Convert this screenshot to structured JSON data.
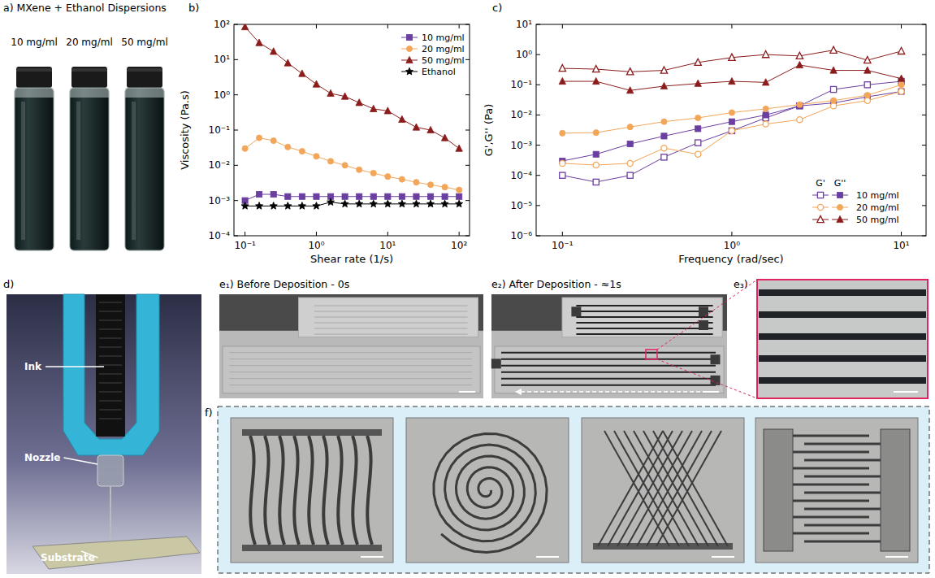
{
  "panels": {
    "a": {
      "label": "a) MXene + Ethanol Dispersions",
      "vials": [
        "10 mg/ml",
        "20 mg/ml",
        "50 mg/ml"
      ]
    },
    "b": {
      "label": "b)"
    },
    "c": {
      "label": "c)"
    },
    "d": {
      "label": "d)",
      "callouts": [
        "Ink",
        "Nozzle",
        "Substrate"
      ]
    },
    "e1": {
      "label": "e₁) Before Deposition - 0s"
    },
    "e2": {
      "label": "e₂) After Deposition - ≈1s"
    },
    "e3": {
      "label": "e₃)"
    },
    "f": {
      "label": "f)"
    }
  },
  "chart_data": [
    {
      "type": "line",
      "x_label": "Shear rate (1/s)",
      "y_label": "Viscosity (Pa.s)",
      "log": true,
      "legend": "top-right",
      "xlim": [
        0.07,
        140
      ],
      "ylim": [
        0.0001,
        100
      ],
      "xticks": [
        {
          "value": 0.1,
          "label": "10⁻¹"
        },
        {
          "value": 1,
          "label": "10⁰"
        },
        {
          "value": 10,
          "label": "10¹"
        },
        {
          "value": 100,
          "label": "10²"
        }
      ],
      "yticks": [
        {
          "value": 0.0001,
          "label": "10⁻⁴"
        },
        {
          "value": 0.001,
          "label": "10⁻³"
        },
        {
          "value": 0.01,
          "label": "10⁻²"
        },
        {
          "value": 0.1,
          "label": "10⁻¹"
        },
        {
          "value": 1,
          "label": "10⁰"
        },
        {
          "value": 10,
          "label": "10¹"
        },
        {
          "value": 100,
          "label": "10²"
        }
      ],
      "x": [
        0.1,
        0.158,
        0.251,
        0.398,
        0.631,
        1,
        1.585,
        2.512,
        3.981,
        6.31,
        10,
        15.85,
        25.12,
        39.81,
        63.1,
        100
      ],
      "series": [
        {
          "name": "10 mg/ml",
          "color": "#6b3fa0",
          "marker": "square",
          "values": [
            0.001,
            0.0015,
            0.0015,
            0.0013,
            0.0013,
            0.0013,
            0.0013,
            0.0013,
            0.0013,
            0.0013,
            0.0013,
            0.0013,
            0.0013,
            0.0013,
            0.0013,
            0.0013
          ]
        },
        {
          "name": "20 mg/ml",
          "color": "#f2a65a",
          "marker": "circle",
          "values": [
            0.03,
            0.06,
            0.05,
            0.033,
            0.025,
            0.018,
            0.013,
            0.01,
            0.0075,
            0.006,
            0.0048,
            0.004,
            0.0033,
            0.0028,
            0.0024,
            0.002
          ]
        },
        {
          "name": "50 mg/ml",
          "color": "#8b1c1c",
          "marker": "triangle",
          "values": [
            85,
            30,
            17,
            8,
            4,
            2,
            1.1,
            0.9,
            0.6,
            0.4,
            0.35,
            0.2,
            0.12,
            0.1,
            0.06,
            0.03
          ]
        },
        {
          "name": "Ethanol",
          "color": "#000000",
          "marker": "star",
          "values": [
            0.0007,
            0.0007,
            0.0007,
            0.0007,
            0.0007,
            0.0007,
            0.0009,
            0.0008,
            0.0008,
            0.0008,
            0.0008,
            0.0008,
            0.0008,
            0.0008,
            0.0008,
            0.0008
          ]
        }
      ]
    },
    {
      "type": "line",
      "x_label": "Frequency (rad/sec)",
      "y_label": "G',G'' (Pa)",
      "log": true,
      "legend": "bottom-right",
      "legend_columns": [
        "G'",
        "G''"
      ],
      "xlim": [
        0.07,
        14
      ],
      "ylim": [
        1e-06,
        10
      ],
      "xticks": [
        {
          "value": 0.1,
          "label": "10⁻¹"
        },
        {
          "value": 1,
          "label": "10⁰"
        },
        {
          "value": 10,
          "label": "10¹"
        }
      ],
      "yticks": [
        {
          "value": 1e-06,
          "label": "10⁻⁶"
        },
        {
          "value": 1e-05,
          "label": "10⁻⁵"
        },
        {
          "value": 0.0001,
          "label": "10⁻⁴"
        },
        {
          "value": 0.001,
          "label": "10⁻³"
        },
        {
          "value": 0.01,
          "label": "10⁻²"
        },
        {
          "value": 0.1,
          "label": "10⁻¹"
        },
        {
          "value": 1,
          "label": "10⁰"
        },
        {
          "value": 10,
          "label": "10¹"
        }
      ],
      "x": [
        0.1,
        0.158,
        0.251,
        0.398,
        0.631,
        1,
        1.585,
        2.512,
        3.981,
        6.31,
        10
      ],
      "series": [
        {
          "name": "10 mg/ml",
          "color": "#6b3fa0",
          "marker": "open-square",
          "values": [
            0.0001,
            6e-05,
            0.0001,
            0.0004,
            0.0012,
            0.003,
            0.008,
            0.02,
            0.07,
            0.1,
            0.13
          ]
        },
        {
          "name": "10 mg/ml",
          "color": "#6b3fa0",
          "marker": "square",
          "values": [
            0.0003,
            0.0005,
            0.0011,
            0.002,
            0.0035,
            0.006,
            0.01,
            0.02,
            0.025,
            0.04,
            0.06
          ]
        },
        {
          "name": "20 mg/ml",
          "color": "#f2a65a",
          "marker": "open-circle",
          "values": [
            0.00025,
            0.00022,
            0.00025,
            0.0008,
            0.0005,
            0.003,
            0.005,
            0.007,
            0.02,
            0.03,
            0.06
          ]
        },
        {
          "name": "20 mg/ml",
          "color": "#f2a65a",
          "marker": "circle",
          "values": [
            0.0025,
            0.0026,
            0.004,
            0.006,
            0.008,
            0.012,
            0.016,
            0.022,
            0.03,
            0.045,
            0.1
          ]
        },
        {
          "name": "50 mg/ml",
          "color": "#8b1c1c",
          "marker": "open-triangle",
          "values": [
            0.35,
            0.33,
            0.27,
            0.3,
            0.55,
            0.8,
            1.0,
            0.9,
            1.4,
            0.65,
            1.3
          ]
        },
        {
          "name": "50 mg/ml",
          "color": "#8b1c1c",
          "marker": "triangle",
          "values": [
            0.13,
            0.13,
            0.065,
            0.09,
            0.11,
            0.13,
            0.12,
            0.45,
            0.3,
            0.3,
            0.16
          ]
        }
      ]
    }
  ]
}
